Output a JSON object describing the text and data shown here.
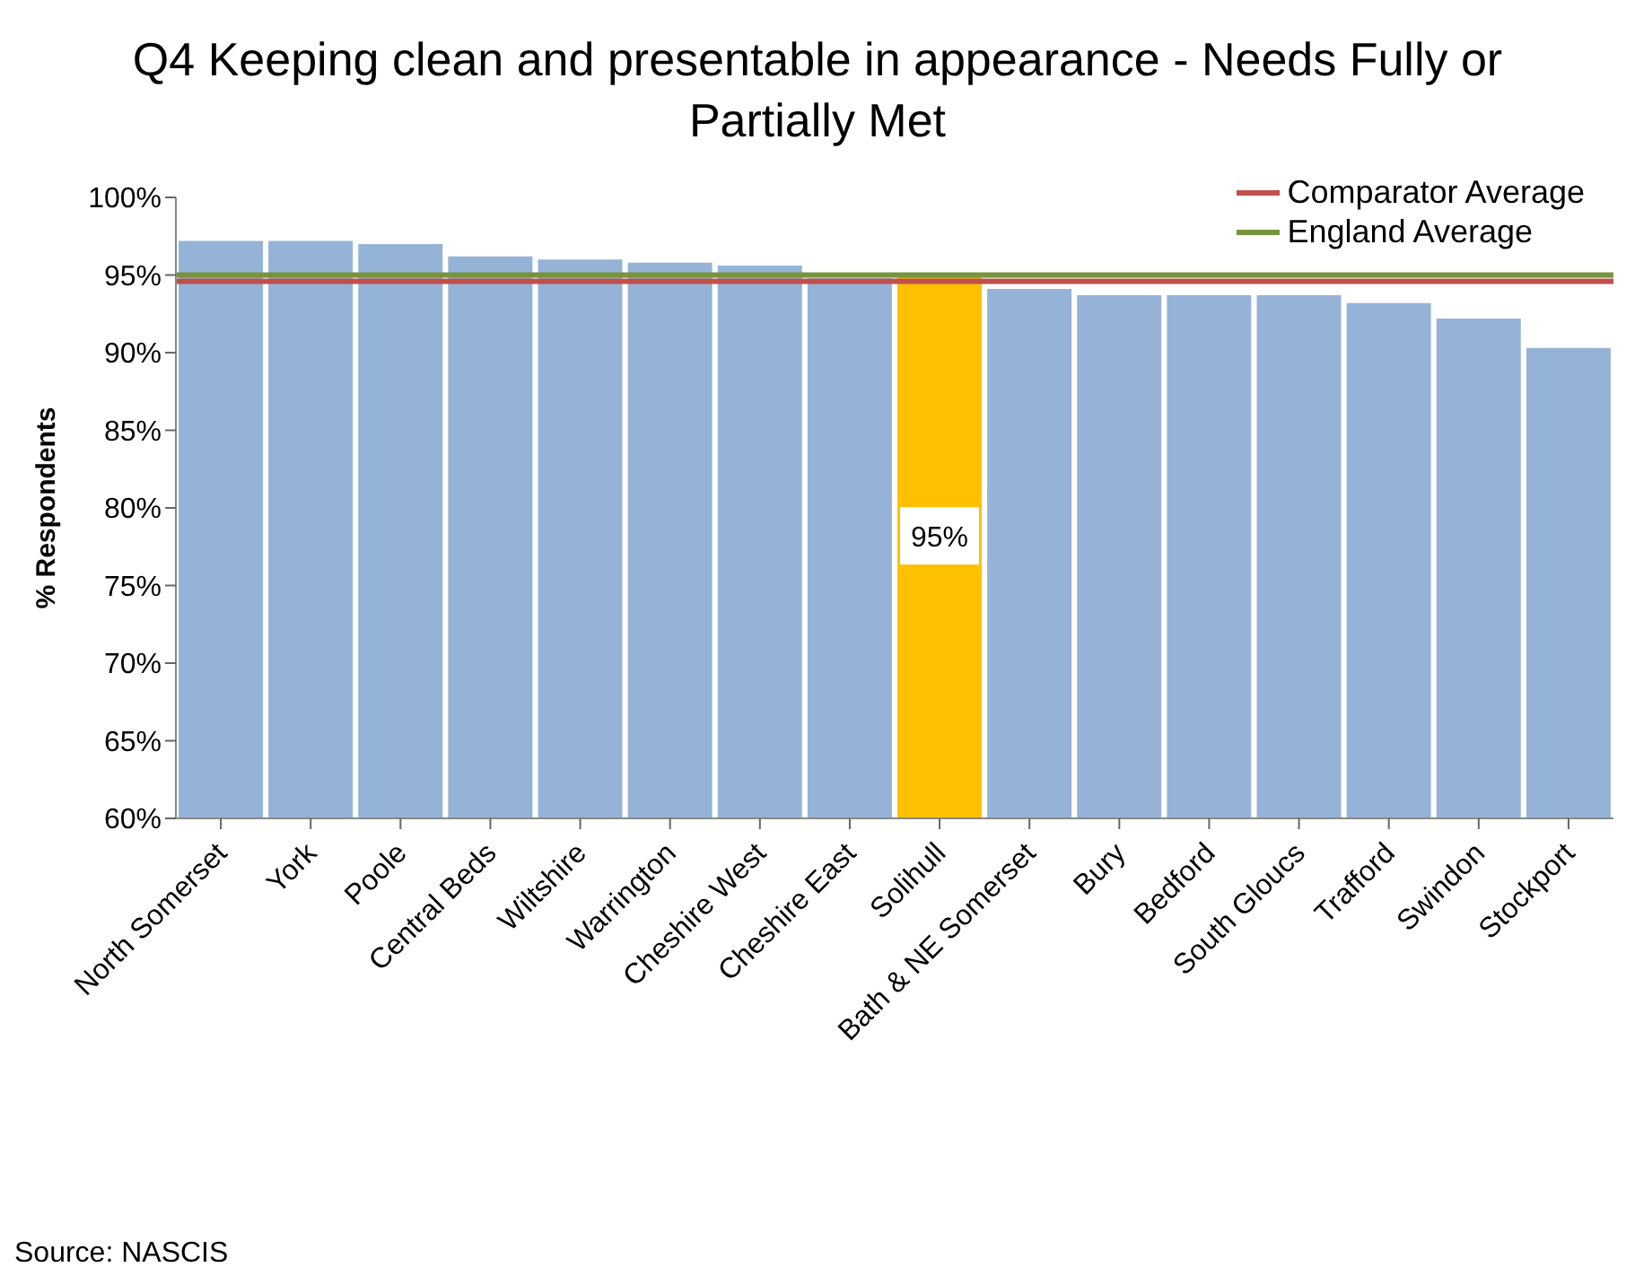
{
  "chart_data": {
    "type": "bar",
    "title": "Q4 Keeping clean and presentable in appearance - Needs Fully or Partially Met",
    "ylabel": "% Respondents",
    "categories": [
      "North Somerset",
      "York",
      "Poole",
      "Central Beds",
      "Wiltshire",
      "Warrington",
      "Cheshire West",
      "Cheshire East",
      "Solihull",
      "Bath & NE Somerset",
      "Bury",
      "Bedford",
      "South Gloucs",
      "Trafford",
      "Swindon",
      "Stockport"
    ],
    "values": [
      97.2,
      97.2,
      97.0,
      96.2,
      96.0,
      95.8,
      95.6,
      94.8,
      95,
      94.1,
      93.7,
      93.7,
      93.7,
      93.2,
      92.2,
      90.3
    ],
    "colors": [
      "#95b3d7",
      "#95b3d7",
      "#95b3d7",
      "#95b3d7",
      "#95b3d7",
      "#95b3d7",
      "#95b3d7",
      "#95b3d7",
      "#ffc000",
      "#95b3d7",
      "#95b3d7",
      "#95b3d7",
      "#95b3d7",
      "#95b3d7",
      "#95b3d7",
      "#95b3d7"
    ],
    "value_labels": [
      null,
      null,
      null,
      null,
      null,
      null,
      null,
      null,
      "95%",
      null,
      null,
      null,
      null,
      null,
      null,
      null
    ],
    "ylim": [
      60,
      100
    ],
    "yticks": [
      {
        "value": 60,
        "label": "60%"
      },
      {
        "value": 65,
        "label": "65%"
      },
      {
        "value": 70,
        "label": "70%"
      },
      {
        "value": 75,
        "label": "75%"
      },
      {
        "value": 80,
        "label": "80%"
      },
      {
        "value": 85,
        "label": "85%"
      },
      {
        "value": 90,
        "label": "90%"
      },
      {
        "value": 95,
        "label": "95%"
      },
      {
        "value": 100,
        "label": "100%"
      }
    ],
    "ref_lines": [
      {
        "axis": "y",
        "value": 94.6,
        "label": "Comparator Average",
        "color": "#c0504d"
      },
      {
        "axis": "y",
        "value": 95.0,
        "label": "England Average",
        "color": "#77933c"
      }
    ],
    "legend": "top right",
    "annotations": [
      "Source: NASCIS"
    ]
  }
}
